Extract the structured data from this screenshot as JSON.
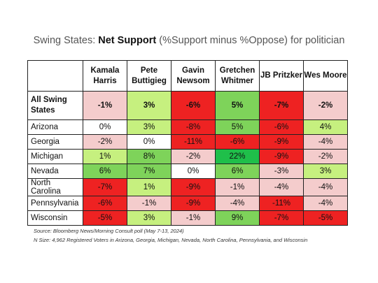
{
  "title": {
    "prefix": "Swing States: ",
    "bold": "Net Support",
    "suffix": " (%Support minus %Oppose) for politician"
  },
  "chart_data": {
    "type": "heatmap",
    "title": "Swing States: Net Support (%Support minus %Oppose) for politician",
    "columns": [
      {
        "line1": "Kamala",
        "line2": "Harris"
      },
      {
        "line1": "Pete",
        "line2": "Buttigieg"
      },
      {
        "line1": "Gavin",
        "line2": "Newsom"
      },
      {
        "line1": "Gretchen",
        "line2": "Whitmer"
      },
      {
        "line1": "JB Pritzker",
        "line2": ""
      },
      {
        "line1": "Wes Moore",
        "line2": ""
      }
    ],
    "rows": [
      {
        "line1": "All Swing",
        "line2": "States",
        "values": [
          -1,
          3,
          -6,
          5,
          -7,
          -2
        ],
        "bold": true
      },
      {
        "line1": "Arizona",
        "line2": "",
        "values": [
          0,
          3,
          -8,
          5,
          -6,
          4
        ]
      },
      {
        "line1": "Georgia",
        "line2": "",
        "values": [
          -2,
          0,
          -11,
          -6,
          -9,
          -4
        ]
      },
      {
        "line1": "Michigan",
        "line2": "",
        "values": [
          1,
          8,
          -2,
          22,
          -9,
          -2
        ]
      },
      {
        "line1": "Nevada",
        "line2": "",
        "values": [
          6,
          7,
          0,
          6,
          -3,
          3
        ]
      },
      {
        "line1": "North Carolina",
        "line2": "",
        "values": [
          -7,
          1,
          -9,
          -1,
          -4,
          -4
        ]
      },
      {
        "line1": "Pennsylvania",
        "line2": "",
        "values": [
          -6,
          -1,
          -9,
          -4,
          -11,
          -4
        ]
      },
      {
        "line1": "Wisconsin",
        "line2": "",
        "values": [
          -5,
          3,
          -1,
          9,
          -7,
          -5
        ]
      }
    ],
    "unit": "%",
    "colors": {
      "strong_negative": "#ee2222",
      "weak_negative": "#f4cccc",
      "zero": "#ffffff",
      "weak_positive": "#c6f07f",
      "mid_positive": "#7ed35a",
      "strong_positive": "#1fbf4a"
    }
  },
  "source": {
    "line1": "Source: Bloomberg News/Morning Consult poll (May 7-13, 2024)",
    "line2": "N Size: 4,962 Registered Voters in Arizona, Georgia, Michigan, Nevada, North Carolina, Pennsylvania, and Wisconsin"
  }
}
